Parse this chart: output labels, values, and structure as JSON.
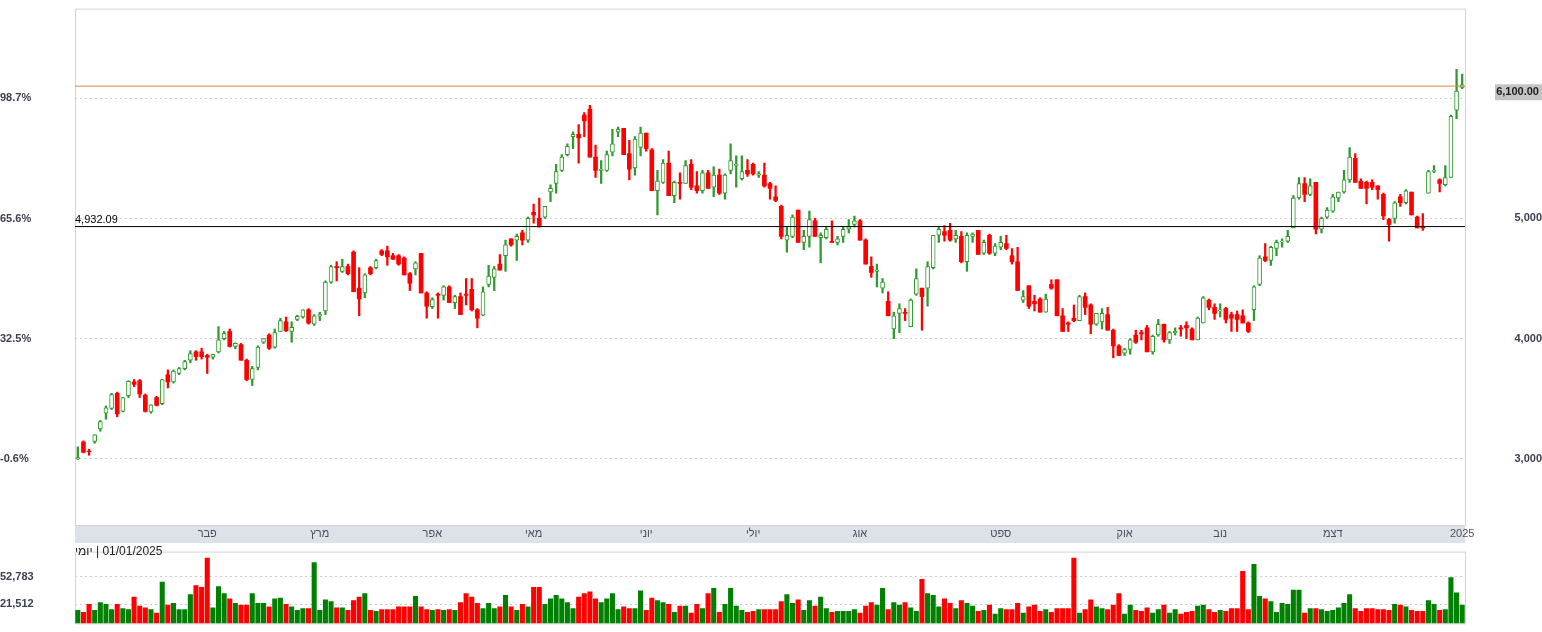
{
  "chart_data": [
    {
      "type": "candlestick",
      "categories": [
        null,
        null,
        null,
        null,
        null,
        null,
        null,
        null,
        null,
        null,
        null,
        null,
        null,
        null,
        null,
        null,
        null,
        null,
        null,
        null,
        null,
        null,
        null,
        "פבר",
        null,
        null,
        null,
        null,
        null,
        null,
        null,
        null,
        null,
        null,
        null,
        null,
        null,
        null,
        null,
        null,
        null,
        null,
        null,
        "מרץ",
        null,
        null,
        null,
        null,
        null,
        null,
        null,
        null,
        null,
        null,
        null,
        null,
        null,
        null,
        null,
        null,
        null,
        null,
        null,
        "אפר",
        null,
        null,
        null,
        null,
        null,
        null,
        null,
        null,
        null,
        null,
        null,
        null,
        null,
        null,
        null,
        null,
        null,
        "מאי",
        null,
        null,
        null,
        null,
        null,
        null,
        null,
        null,
        null,
        null,
        null,
        null,
        null,
        null,
        null,
        null,
        null,
        null,
        null,
        "יוני",
        null,
        null,
        null,
        null,
        null,
        null,
        null,
        null,
        null,
        null,
        null,
        null,
        null,
        null,
        null,
        null,
        null,
        null,
        "יולי",
        null,
        null,
        null,
        null,
        null,
        null,
        null,
        null,
        null,
        null,
        null,
        null,
        null,
        null,
        null,
        null,
        null,
        null,
        "אוג",
        null,
        null,
        null,
        null,
        null,
        null,
        null,
        null,
        null,
        null,
        null,
        null,
        null,
        null,
        null,
        null,
        null,
        null,
        null,
        null,
        null,
        null,
        null,
        null,
        "ספט",
        null,
        null,
        null,
        null,
        null,
        null,
        null,
        null,
        null,
        null,
        null,
        null,
        null,
        null,
        null,
        null,
        null,
        null,
        null,
        null,
        null,
        "אוק",
        null,
        null,
        null,
        null,
        null,
        null,
        null,
        null,
        null,
        null,
        null,
        null,
        null,
        null,
        null,
        null,
        "נוב",
        null,
        null,
        null,
        null,
        null,
        null,
        null,
        null,
        null,
        null,
        null,
        null,
        null,
        null,
        null,
        null,
        null,
        null,
        null,
        "דצמ",
        null,
        null,
        null,
        null,
        null,
        null,
        null,
        null,
        null,
        null,
        null,
        null,
        null,
        null,
        null,
        null,
        null,
        null,
        null,
        null,
        null,
        null,
        "2025"
      ],
      "ohlc": [
        [
          3000,
          3100,
          2995,
          3010
        ],
        [
          3140,
          3150,
          3050,
          3055
        ],
        [
          3065,
          3080,
          3030,
          3060
        ],
        [
          3145,
          3200,
          3130,
          3200
        ],
        [
          3250,
          3320,
          3230,
          3310
        ],
        [
          3380,
          3440,
          3330,
          3425
        ],
        [
          3420,
          3545,
          3410,
          3535
        ],
        [
          3545,
          3555,
          3350,
          3375
        ],
        [
          3395,
          3510,
          3390,
          3510
        ],
        [
          3525,
          3650,
          3510,
          3645
        ],
        [
          3640,
          3660,
          3600,
          3620
        ],
        [
          3650,
          3660,
          3510,
          3540
        ],
        [
          3530,
          3540,
          3390,
          3395
        ],
        [
          3390,
          3450,
          3380,
          3450
        ],
        [
          3510,
          3520,
          3440,
          3445
        ],
        [
          3460,
          3660,
          3450,
          3660
        ],
        [
          3700,
          3740,
          3590,
          3640
        ],
        [
          3640,
          3740,
          3630,
          3730
        ],
        [
          3710,
          3760,
          3700,
          3750
        ],
        [
          3750,
          3820,
          3740,
          3810
        ],
        [
          3820,
          3900,
          3800,
          3875
        ],
        [
          3890,
          3900,
          3820,
          3850
        ],
        [
          3890,
          3920,
          3830,
          3850
        ],
        [
          3860,
          3870,
          3710,
          3845
        ],
        [
          3845,
          3870,
          3830,
          3870
        ],
        [
          3890,
          4100,
          3880,
          3990
        ],
        [
          4000,
          4060,
          3990,
          4045
        ],
        [
          4060,
          4080,
          3930,
          3935
        ],
        [
          3935,
          3965,
          3915,
          3960
        ],
        [
          3950,
          3960,
          3820,
          3820
        ],
        [
          3820,
          3830,
          3650,
          3660
        ],
        [
          3660,
          3770,
          3610,
          3750
        ],
        [
          3760,
          3940,
          3740,
          3930
        ],
        [
          3970,
          4000,
          3960,
          4000
        ],
        [
          4030,
          4040,
          3910,
          3920
        ],
        [
          3930,
          4080,
          3920,
          4050
        ],
        [
          4060,
          4170,
          4060,
          4150
        ],
        [
          4140,
          4180,
          4060,
          4065
        ],
        [
          4060,
          4140,
          3970,
          4095
        ],
        [
          4160,
          4195,
          4150,
          4185
        ],
        [
          4180,
          4240,
          4170,
          4240
        ],
        [
          4240,
          4250,
          4120,
          4130
        ],
        [
          4120,
          4200,
          4110,
          4190
        ],
        [
          4190,
          4220,
          4150,
          4200
        ],
        [
          4230,
          4480,
          4200,
          4470
        ],
        [
          4470,
          4610,
          4460,
          4600
        ],
        [
          4600,
          4640,
          4480,
          4590
        ],
        [
          4560,
          4660,
          4550,
          4600
        ],
        [
          4600,
          4620,
          4530,
          4540
        ],
        [
          4720,
          4730,
          4390,
          4390
        ],
        [
          4420,
          4590,
          4190,
          4330
        ],
        [
          4380,
          4540,
          4340,
          4530
        ],
        [
          4590,
          4600,
          4530,
          4540
        ],
        [
          4590,
          4660,
          4580,
          4650
        ],
        [
          4730,
          4740,
          4690,
          4700
        ],
        [
          4730,
          4770,
          4610,
          4680
        ],
        [
          4690,
          4710,
          4660,
          4660
        ],
        [
          4690,
          4700,
          4610,
          4620
        ],
        [
          4670,
          4680,
          4530,
          4530
        ],
        [
          4540,
          4550,
          4400,
          4460
        ],
        [
          4580,
          4640,
          4530,
          4630
        ],
        [
          4710,
          4710,
          4380,
          4380
        ],
        [
          4380,
          4390,
          4170,
          4270
        ],
        [
          4265,
          4340,
          4250,
          4325
        ],
        [
          4370,
          4380,
          4170,
          4360
        ],
        [
          4360,
          4440,
          4320,
          4430
        ],
        [
          4430,
          4440,
          4300,
          4300
        ],
        [
          4300,
          4360,
          4250,
          4350
        ],
        [
          4350,
          4380,
          4200,
          4200
        ],
        [
          4370,
          4500,
          4280,
          4360
        ],
        [
          4410,
          4500,
          4230,
          4240
        ],
        [
          4240,
          4250,
          4090,
          4170
        ],
        [
          4195,
          4430,
          4190,
          4390
        ],
        [
          4450,
          4610,
          4430,
          4520
        ],
        [
          4510,
          4600,
          4400,
          4580
        ],
        [
          4620,
          4700,
          4570,
          4570
        ],
        [
          4690,
          4820,
          4560,
          4780
        ],
        [
          4830,
          4830,
          4770,
          4780
        ],
        [
          4820,
          4870,
          4650,
          4850
        ],
        [
          4880,
          4900,
          4780,
          4820
        ],
        [
          4820,
          5010,
          4800,
          5000
        ],
        [
          5050,
          5120,
          4960,
          5030
        ],
        [
          5000,
          5170,
          4930,
          4930
        ],
        [
          5010,
          5100,
          5000,
          5100
        ],
        [
          5220,
          5280,
          5140,
          5250
        ],
        [
          5290,
          5450,
          5210,
          5390
        ],
        [
          5400,
          5530,
          5390,
          5510
        ],
        [
          5530,
          5620,
          5520,
          5600
        ],
        [
          5680,
          5720,
          5580,
          5700
        ],
        [
          5700,
          5780,
          5460,
          5670
        ],
        [
          5860,
          5880,
          5680,
          5810
        ],
        [
          5910,
          5940,
          5510,
          5510
        ],
        [
          5510,
          5610,
          5340,
          5400
        ],
        [
          5400,
          5480,
          5290,
          5410
        ],
        [
          5400,
          5560,
          5390,
          5530
        ],
        [
          5550,
          5740,
          5520,
          5620
        ],
        [
          5720,
          5760,
          5680,
          5740
        ],
        [
          5750,
          5750,
          5530,
          5530
        ],
        [
          5540,
          5650,
          5320,
          5410
        ],
        [
          5420,
          5680,
          5360,
          5660
        ],
        [
          5590,
          5760,
          5520,
          5710
        ],
        [
          5710,
          5710,
          5560,
          5580
        ],
        [
          5570,
          5580,
          5230,
          5230
        ],
        [
          5230,
          5400,
          5030,
          5310
        ],
        [
          5300,
          5490,
          5290,
          5460
        ],
        [
          5460,
          5560,
          5190,
          5190
        ],
        [
          5190,
          5310,
          5130,
          5300
        ],
        [
          5300,
          5380,
          5160,
          5290
        ],
        [
          5290,
          5480,
          5290,
          5440
        ],
        [
          5450,
          5490,
          5240,
          5260
        ],
        [
          5270,
          5390,
          5210,
          5230
        ],
        [
          5230,
          5400,
          5210,
          5380
        ],
        [
          5380,
          5400,
          5250,
          5250
        ],
        [
          5260,
          5430,
          5180,
          5360
        ],
        [
          5360,
          5410,
          5200,
          5210
        ],
        [
          5210,
          5370,
          5160,
          5360
        ],
        [
          5400,
          5620,
          5370,
          5480
        ],
        [
          5440,
          5520,
          5260,
          5450
        ],
        [
          5330,
          5520,
          5320,
          5390
        ],
        [
          5400,
          5490,
          5350,
          5370
        ],
        [
          5450,
          5460,
          5360,
          5370
        ],
        [
          5360,
          5390,
          5340,
          5370
        ],
        [
          5360,
          5460,
          5260,
          5270
        ],
        [
          5290,
          5300,
          5160,
          5250
        ],
        [
          5180,
          5270,
          5140,
          5150
        ],
        [
          5100,
          5110,
          4830,
          4850
        ],
        [
          4820,
          4930,
          4720,
          4860
        ],
        [
          4850,
          5030,
          4840,
          5010
        ],
        [
          5070,
          5070,
          4800,
          4800
        ],
        [
          4800,
          4900,
          4740,
          4850
        ],
        [
          4850,
          5060,
          4760,
          4990
        ],
        [
          4980,
          5000,
          4850,
          4850
        ],
        [
          4840,
          4880,
          4630,
          4860
        ],
        [
          4840,
          4930,
          4830,
          4910
        ],
        [
          4810,
          4980,
          4800,
          4800
        ],
        [
          4800,
          4850,
          4780,
          4830
        ],
        [
          4850,
          4930,
          4800,
          4910
        ],
        [
          4910,
          4990,
          4880,
          4930
        ],
        [
          4950,
          5020,
          4930,
          4980
        ],
        [
          4980,
          4990,
          4820,
          4820
        ],
        [
          4820,
          4830,
          4620,
          4620
        ],
        [
          4600,
          4680,
          4510,
          4550
        ],
        [
          4560,
          4620,
          4430,
          4570
        ],
        [
          4420,
          4500,
          4380,
          4470
        ],
        [
          4310,
          4390,
          4190,
          4190
        ],
        [
          4080,
          4220,
          4000,
          4190
        ],
        [
          4210,
          4290,
          4050,
          4250
        ],
        [
          4220,
          4250,
          4150,
          4210
        ],
        [
          4100,
          4330,
          4100,
          4320
        ],
        [
          4370,
          4580,
          4360,
          4500
        ],
        [
          4420,
          4420,
          4070,
          4350
        ],
        [
          4420,
          4640,
          4270,
          4600
        ],
        [
          4590,
          4860,
          4580,
          4860
        ],
        [
          4860,
          4930,
          4800,
          4910
        ],
        [
          4890,
          4940,
          4810,
          4860
        ],
        [
          4900,
          4960,
          4810,
          4820
        ],
        [
          4830,
          4900,
          4800,
          4860
        ],
        [
          4850,
          4890,
          4630,
          4640
        ],
        [
          4640,
          4880,
          4560,
          4860
        ],
        [
          4850,
          4880,
          4800,
          4870
        ],
        [
          4900,
          4900,
          4700,
          4700
        ],
        [
          4710,
          4820,
          4700,
          4800
        ],
        [
          4860,
          4870,
          4700,
          4710
        ],
        [
          4710,
          4790,
          4690,
          4770
        ],
        [
          4760,
          4850,
          4740,
          4800
        ],
        [
          4790,
          4860,
          4740,
          4750
        ],
        [
          4690,
          4750,
          4620,
          4640
        ],
        [
          4640,
          4760,
          4400,
          4400
        ],
        [
          4320,
          4400,
          4300,
          4350
        ],
        [
          4440,
          4440,
          4250,
          4270
        ],
        [
          4310,
          4360,
          4230,
          4290
        ],
        [
          4330,
          4340,
          4220,
          4220
        ],
        [
          4220,
          4370,
          4220,
          4330
        ],
        [
          4450,
          4490,
          4410,
          4420
        ],
        [
          4490,
          4490,
          4190,
          4190
        ],
        [
          4190,
          4250,
          4060,
          4060
        ],
        [
          4130,
          4140,
          4060,
          4120
        ],
        [
          4170,
          4280,
          4140,
          4150
        ],
        [
          4150,
          4360,
          4150,
          4350
        ],
        [
          4350,
          4380,
          4200,
          4260
        ],
        [
          4280,
          4290,
          4040,
          4120
        ],
        [
          4120,
          4210,
          4110,
          4210
        ],
        [
          4140,
          4250,
          4080,
          4210
        ],
        [
          4200,
          4260,
          4070,
          4070
        ],
        [
          4070,
          4080,
          3840,
          3940
        ],
        [
          3940,
          3950,
          3860,
          3860
        ],
        [
          3880,
          3920,
          3860,
          3910
        ],
        [
          3910,
          4000,
          3870,
          3990
        ],
        [
          4030,
          4070,
          3960,
          3970
        ],
        [
          4050,
          4070,
          3990,
          4040
        ],
        [
          4090,
          4110,
          3890,
          3890
        ],
        [
          3890,
          4030,
          3870,
          4020
        ],
        [
          4030,
          4160,
          4020,
          4120
        ],
        [
          4120,
          4120,
          3970,
          3990
        ],
        [
          3990,
          4060,
          3960,
          4050
        ],
        [
          4050,
          4090,
          4030,
          4060
        ],
        [
          4090,
          4110,
          4020,
          4080
        ],
        [
          4110,
          4140,
          4000,
          4090
        ],
        [
          4080,
          4090,
          3990,
          3990
        ],
        [
          3990,
          4180,
          3990,
          4170
        ],
        [
          4130,
          4350,
          4130,
          4340
        ],
        [
          4320,
          4330,
          4240,
          4260
        ],
        [
          4260,
          4290,
          4160,
          4210
        ],
        [
          4230,
          4290,
          4180,
          4240
        ],
        [
          4250,
          4260,
          4130,
          4160
        ],
        [
          4200,
          4220,
          4060,
          4170
        ],
        [
          4200,
          4230,
          4060,
          4160
        ],
        [
          4190,
          4240,
          4130,
          4130
        ],
        [
          4130,
          4140,
          4050,
          4060
        ],
        [
          4240,
          4440,
          4150,
          4430
        ],
        [
          4450,
          4690,
          4440,
          4670
        ],
        [
          4680,
          4790,
          4640,
          4650
        ],
        [
          4650,
          4770,
          4610,
          4760
        ],
        [
          4750,
          4820,
          4690,
          4800
        ],
        [
          4805,
          4830,
          4760,
          4810
        ],
        [
          4810,
          4900,
          4800,
          4850
        ],
        [
          4920,
          5190,
          4920,
          5170
        ],
        [
          5170,
          5340,
          5160,
          5290
        ],
        [
          5290,
          5340,
          5140,
          5200
        ],
        [
          5200,
          5330,
          5190,
          5270
        ],
        [
          5300,
          5300,
          4870,
          4910
        ],
        [
          4910,
          5010,
          4880,
          5000
        ],
        [
          5010,
          5090,
          5000,
          5070
        ],
        [
          5060,
          5200,
          5050,
          5180
        ],
        [
          5170,
          5220,
          5140,
          5220
        ],
        [
          5220,
          5400,
          5210,
          5320
        ],
        [
          5320,
          5590,
          5300,
          5510
        ],
        [
          5500,
          5540,
          5300,
          5300
        ],
        [
          5310,
          5330,
          5250,
          5250
        ],
        [
          5300,
          5310,
          5120,
          5250
        ],
        [
          5300,
          5320,
          5240,
          5260
        ],
        [
          5270,
          5270,
          5160,
          5240
        ],
        [
          5200,
          5210,
          4990,
          5020
        ],
        [
          4990,
          5000,
          4810,
          4950
        ],
        [
          5000,
          5140,
          4960,
          5130
        ],
        [
          5180,
          5200,
          5100,
          5130
        ],
        [
          5130,
          5240,
          5120,
          5230
        ],
        [
          5220,
          5220,
          5030,
          5030
        ],
        [
          5010,
          5020,
          4920,
          4920
        ],
        [
          4930,
          5040,
          4900,
          4920
        ],
        [
          5210,
          5400,
          5210,
          5390
        ],
        [
          5390,
          5440,
          5380,
          5400
        ],
        [
          5320,
          5330,
          5220,
          5290
        ],
        [
          5280,
          5440,
          5270,
          5340
        ],
        [
          5340,
          5860,
          5340,
          5850
        ],
        [
          5900,
          6240,
          5830,
          6060
        ],
        [
          6090,
          6200,
          6080,
          6110
        ]
      ],
      "ylim": [
        2450,
        6745
      ],
      "yticks": [
        {
          "value": 3000,
          "label": "3,000"
        },
        {
          "value": 4000,
          "label": "4,000"
        },
        {
          "value": 5000,
          "label": "5,000"
        },
        {
          "value": 6000,
          "label": null
        }
      ],
      "y2lim": [
        -18.8,
        123.4
      ],
      "y2ticks": [
        {
          "value": -0.6,
          "label": "-0.6%"
        },
        {
          "value": 32.5,
          "label": "32.5%"
        },
        {
          "value": 65.6,
          "label": "65.6%"
        },
        {
          "value": 98.7,
          "label": "98.7%"
        }
      ],
      "ref_lines": [
        {
          "axis": "y",
          "value": 6100,
          "label": "6,100.00",
          "color": "#d98b3a"
        },
        {
          "axis": "y",
          "value": 4932.09,
          "label": "4,932.09",
          "color": "#000000"
        }
      ],
      "grid": "y"
    },
    {
      "type": "bar",
      "title": "01/01/2025 | יומי",
      "categories": [
        null,
        null,
        null,
        null,
        null,
        null,
        null,
        null,
        null,
        null,
        null,
        null,
        null,
        null,
        null,
        null,
        null,
        null,
        null,
        null,
        null,
        null,
        null,
        null,
        null,
        null,
        null,
        null,
        null,
        null,
        null,
        null,
        null,
        null,
        null,
        null,
        null,
        null,
        null,
        null,
        null,
        null,
        null,
        null,
        null,
        null,
        null,
        null,
        null,
        null,
        null,
        null,
        null,
        null,
        null,
        null,
        null,
        null,
        null,
        null,
        null,
        null,
        null,
        null,
        null,
        null,
        null,
        null,
        null,
        null,
        null,
        null,
        null,
        null,
        null,
        null,
        null,
        null,
        null,
        null,
        null,
        null,
        null,
        null,
        null,
        null,
        null,
        null,
        null,
        null,
        null,
        null,
        null,
        null,
        null,
        null,
        null,
        null,
        null,
        null,
        null,
        null,
        null,
        null,
        null,
        null,
        null,
        null,
        null,
        null,
        null,
        null,
        null,
        null,
        null,
        null,
        null,
        null,
        null,
        null,
        null,
        null,
        null,
        null,
        null,
        null,
        null,
        null,
        null,
        null,
        null,
        null,
        null,
        null,
        null,
        null,
        null,
        null,
        null,
        null,
        null,
        null,
        null,
        null,
        null,
        null,
        null,
        null,
        null,
        null,
        null,
        null,
        null,
        null,
        null,
        null,
        null,
        null,
        null,
        null,
        null,
        null,
        null,
        null,
        null,
        null,
        null,
        null,
        null,
        null,
        null,
        null,
        null,
        null,
        null,
        null,
        null,
        null,
        null,
        null,
        null,
        null,
        null,
        null,
        null,
        null,
        null,
        null,
        null,
        null,
        null,
        null,
        null,
        null,
        null,
        null,
        null,
        null,
        null,
        null,
        null,
        null,
        null,
        null,
        null,
        null,
        null,
        null,
        null,
        null,
        null,
        null,
        null,
        null,
        null,
        null,
        null,
        null,
        null,
        null,
        null,
        null,
        null,
        null,
        null,
        null,
        null,
        null,
        null,
        null,
        null,
        null,
        null,
        null,
        null,
        null,
        null,
        null,
        null,
        null,
        null,
        null,
        null,
        null,
        null,
        null,
        null
      ],
      "values": [
        15000,
        13000,
        22000,
        15000,
        24000,
        22000,
        16000,
        22000,
        17000,
        16000,
        30000,
        20000,
        18000,
        16000,
        12000,
        47000,
        21000,
        23000,
        16000,
        16000,
        33000,
        43000,
        41000,
        74000,
        18000,
        42000,
        34000,
        28000,
        23000,
        21000,
        21000,
        34000,
        23000,
        23000,
        19000,
        28000,
        29000,
        22000,
        19000,
        15000,
        17000,
        17000,
        69000,
        15000,
        27000,
        25000,
        18000,
        18000,
        15000,
        26000,
        30000,
        34000,
        15000,
        14000,
        16000,
        16000,
        16000,
        19000,
        19000,
        19000,
        31000,
        19000,
        16000,
        15000,
        16000,
        15000,
        16000,
        15000,
        24000,
        34000,
        30000,
        23000,
        17000,
        23000,
        17000,
        19000,
        32000,
        19000,
        15000,
        22000,
        19000,
        41000,
        41000,
        22000,
        28000,
        32000,
        28000,
        24000,
        17000,
        30000,
        34000,
        36000,
        28000,
        24000,
        28000,
        34000,
        16000,
        19000,
        17000,
        17000,
        37000,
        15000,
        29000,
        26000,
        24000,
        22000,
        13000,
        20000,
        20000,
        12000,
        22000,
        17000,
        34000,
        40000,
        13000,
        22000,
        40000,
        20000,
        15000,
        13000,
        14000,
        16000,
        16000,
        16000,
        16000,
        25000,
        33000,
        23000,
        27000,
        15000,
        26000,
        20000,
        30000,
        17000,
        13000,
        14000,
        14000,
        14000,
        16000,
        12000,
        20000,
        24000,
        21000,
        40000,
        16000,
        24000,
        21000,
        24000,
        18000,
        14000,
        50000,
        34000,
        32000,
        19000,
        28000,
        23000,
        17000,
        26000,
        23000,
        20000,
        14000,
        15000,
        21000,
        11000,
        17000,
        16000,
        16000,
        23000,
        12000,
        19000,
        21000,
        14000,
        16000,
        13000,
        17000,
        17000,
        17000,
        74000,
        12000,
        16000,
        27000,
        19000,
        17000,
        16000,
        21000,
        34000,
        11000,
        21000,
        15000,
        14000,
        18000,
        12000,
        16000,
        21000,
        12000,
        16000,
        11000,
        13000,
        14000,
        20000,
        21000,
        16000,
        13000,
        15000,
        14000,
        17000,
        17000,
        59000,
        16000,
        67000,
        31000,
        28000,
        25000,
        13000,
        23000,
        22000,
        38000,
        38000,
        12000,
        17000,
        17000,
        16000,
        14000,
        15000,
        18000,
        23000,
        33000,
        17000,
        14000,
        17000,
        17000,
        16000,
        16000,
        15000,
        22000,
        21000,
        19000,
        15000,
        14000,
        14000,
        26000,
        22000,
        15000,
        16000,
        52000,
        35000,
        21000
      ],
      "colors": [
        "#008000",
        "#ff0000",
        "#ff0000",
        "#008000",
        "#008000",
        "#008000",
        "#008000",
        "#ff0000",
        "#008000",
        "#008000",
        "#ff0000",
        "#ff0000",
        "#ff0000",
        "#008000",
        "#ff0000",
        "#008000",
        "#ff0000",
        "#008000",
        "#008000",
        "#008000",
        "#008000",
        "#ff0000",
        "#ff0000",
        "#ff0000",
        "#008000",
        "#008000",
        "#008000",
        "#ff0000",
        "#008000",
        "#ff0000",
        "#ff0000",
        "#008000",
        "#008000",
        "#008000",
        "#ff0000",
        "#008000",
        "#008000",
        "#ff0000",
        "#008000",
        "#008000",
        "#008000",
        "#ff0000",
        "#008000",
        "#008000",
        "#008000",
        "#008000",
        "#ff0000",
        "#008000",
        "#ff0000",
        "#ff0000",
        "#ff0000",
        "#008000",
        "#ff0000",
        "#008000",
        "#ff0000",
        "#ff0000",
        "#ff0000",
        "#ff0000",
        "#ff0000",
        "#ff0000",
        "#008000",
        "#ff0000",
        "#ff0000",
        "#008000",
        "#ff0000",
        "#008000",
        "#ff0000",
        "#008000",
        "#ff0000",
        "#ff0000",
        "#ff0000",
        "#ff0000",
        "#008000",
        "#008000",
        "#008000",
        "#ff0000",
        "#008000",
        "#ff0000",
        "#008000",
        "#ff0000",
        "#008000",
        "#ff0000",
        "#ff0000",
        "#008000",
        "#008000",
        "#008000",
        "#008000",
        "#008000",
        "#008000",
        "#ff0000",
        "#ff0000",
        "#ff0000",
        "#ff0000",
        "#008000",
        "#008000",
        "#008000",
        "#008000",
        "#ff0000",
        "#ff0000",
        "#008000",
        "#008000",
        "#ff0000",
        "#ff0000",
        "#008000",
        "#008000",
        "#ff0000",
        "#008000",
        "#ff0000",
        "#008000",
        "#ff0000",
        "#ff0000",
        "#008000",
        "#ff0000",
        "#008000",
        "#ff0000",
        "#008000",
        "#008000",
        "#008000",
        "#008000",
        "#ff0000",
        "#ff0000",
        "#008000",
        "#ff0000",
        "#ff0000",
        "#ff0000",
        "#ff0000",
        "#008000",
        "#008000",
        "#ff0000",
        "#008000",
        "#008000",
        "#ff0000",
        "#008000",
        "#008000",
        "#ff0000",
        "#008000",
        "#008000",
        "#008000",
        "#008000",
        "#ff0000",
        "#ff0000",
        "#ff0000",
        "#008000",
        "#008000",
        "#ff0000",
        "#008000",
        "#008000",
        "#ff0000",
        "#008000",
        "#008000",
        "#ff0000",
        "#008000",
        "#008000",
        "#008000",
        "#ff0000",
        "#ff0000",
        "#008000",
        "#ff0000",
        "#008000",
        "#008000",
        "#ff0000",
        "#008000",
        "#ff0000",
        "#008000",
        "#008000",
        "#ff0000",
        "#ff0000",
        "#ff0000",
        "#008000",
        "#ff0000",
        "#ff0000",
        "#ff0000",
        "#008000",
        "#ff0000",
        "#ff0000",
        "#ff0000",
        "#ff0000",
        "#ff0000",
        "#008000",
        "#ff0000",
        "#ff0000",
        "#008000",
        "#008000",
        "#ff0000",
        "#ff0000",
        "#ff0000",
        "#008000",
        "#008000",
        "#ff0000",
        "#ff0000",
        "#ff0000",
        "#008000",
        "#008000",
        "#ff0000",
        "#008000",
        "#008000",
        "#ff0000",
        "#ff0000",
        "#ff0000",
        "#008000",
        "#008000",
        "#ff0000",
        "#ff0000",
        "#008000",
        "#ff0000",
        "#ff0000",
        "#ff0000",
        "#ff0000",
        "#ff0000",
        "#008000",
        "#008000",
        "#ff0000",
        "#008000",
        "#008000",
        "#008000",
        "#008000",
        "#008000",
        "#008000",
        "#ff0000",
        "#008000",
        "#ff0000",
        "#008000",
        "#008000",
        "#008000",
        "#008000",
        "#008000",
        "#008000",
        "#ff0000",
        "#ff0000",
        "#ff0000",
        "#ff0000",
        "#ff0000",
        "#ff0000",
        "#ff0000",
        "#008000",
        "#ff0000",
        "#008000",
        "#ff0000",
        "#ff0000",
        "#ff0000",
        "#008000",
        "#008000",
        "#ff0000",
        "#008000",
        "#008000",
        "#008000",
        "#008000"
      ],
      "ylim": [
        0,
        81000
      ],
      "yticks": [
        {
          "value": 21512,
          "label": "21,512"
        },
        {
          "value": 52783,
          "label": "52,783"
        }
      ],
      "grid": "y",
      "tick_labels": "y"
    }
  ]
}
